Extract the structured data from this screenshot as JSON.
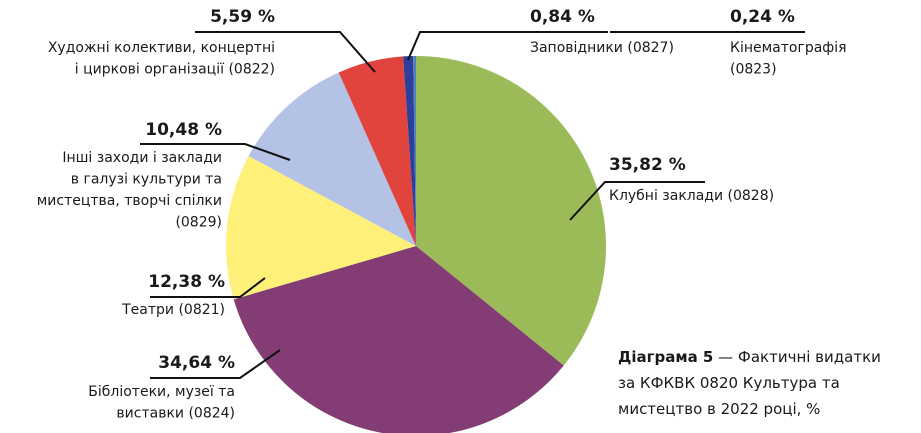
{
  "chart_data": {
    "type": "pie",
    "title_label": "Діаграма 5",
    "title": [
      "— Фактичні видатки",
      "за КФКВК 0820 Культура та",
      "мистецтво в 2022 році, %"
    ],
    "categories": [
      [
        "Клубні заклади (0828)"
      ],
      [
        "Бібліотеки, музеї та",
        "виставки (0824)"
      ],
      [
        "Театри (0821)"
      ],
      [
        "Інші заходи і заклади",
        "в галузі культури та",
        "мистецтва, творчі спілки",
        "(0829)"
      ],
      [
        "Художні колективи, концертні",
        "і циркові організації (0822)"
      ],
      [
        "Заповідники (0827)"
      ],
      [
        "Кінематографія",
        "(0823)"
      ]
    ],
    "values": [
      35.82,
      34.64,
      12.38,
      10.48,
      5.59,
      0.84,
      0.24
    ],
    "value_labels": [
      "35,82 %",
      "34,64 %",
      "12,38 %",
      "10,48 %",
      "5,59 %",
      "0,84 %",
      "0,24 %"
    ],
    "colors": [
      "#9bbb59",
      "#833c74",
      "#fff07a",
      "#b4c2e6",
      "#e0443c",
      "#2e3f9a",
      "#4f81bd"
    ]
  }
}
